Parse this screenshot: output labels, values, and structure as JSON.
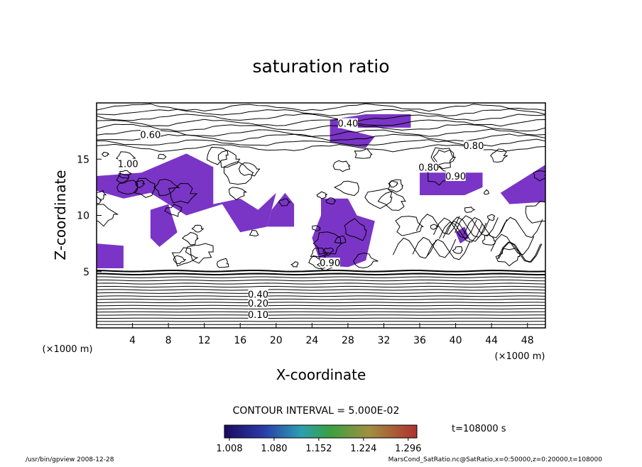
{
  "chart_data": {
    "type": "contour",
    "title": "saturation ratio",
    "x_label": "X-coordinate",
    "y_label": "Z-coordinate",
    "x_unit": "(×1000 m)",
    "y_unit": "(×1000 m)",
    "xlim": [
      0,
      50
    ],
    "xticks": [
      4,
      8,
      12,
      16,
      20,
      24,
      28,
      32,
      36,
      40,
      44,
      48
    ],
    "ylim": [
      0,
      20
    ],
    "yticks": [
      5,
      10,
      15
    ],
    "contour_interval": "CONTOUR INTERVAL = 5.000E-02",
    "contour_levels": [
      {
        "value": 0.1,
        "label": "0.10"
      },
      {
        "value": 0.2,
        "label": "0.20"
      },
      {
        "value": 0.4,
        "label": "0.40"
      },
      {
        "value": 0.6,
        "label": "0.60"
      },
      {
        "value": 0.8,
        "label": "0.80"
      },
      {
        "value": 0.9,
        "label": "0.90"
      },
      {
        "value": 1.0,
        "label": "1.00"
      }
    ],
    "shade_color": "#7a35c6",
    "colorbar_lim": [
      1.0,
      1.31
    ],
    "colorbar_ticks": [
      {
        "value": 1.008,
        "label": "1.008"
      },
      {
        "value": 1.08,
        "label": "1.080"
      },
      {
        "value": 1.152,
        "label": "1.152"
      },
      {
        "value": 1.224,
        "label": "1.224"
      },
      {
        "value": 1.296,
        "label": "1.296"
      }
    ],
    "time_label": "t=108000 s",
    "footer_left": "/usr/bin/gpview  2008-12-28",
    "footer_right": "MarsCond_SatRatio.nc@SatRatio,x=0:50000,z=0:20000,t=108000"
  }
}
